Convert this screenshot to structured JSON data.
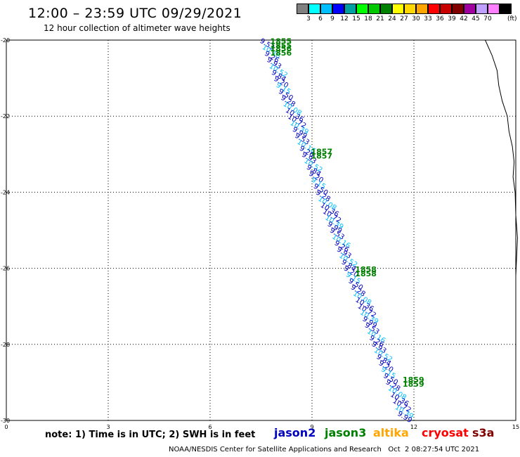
{
  "header": {
    "title": "12:00 – 23:59 UTC 09/29/2021",
    "subtitle": "12 hour collection of altimeter wave heights"
  },
  "legend": {
    "unit": "(ft)",
    "bins": [
      {
        "color": "#808080",
        "label": ""
      },
      {
        "color": "#00ffff",
        "label": "3"
      },
      {
        "color": "#00bfff",
        "label": "6"
      },
      {
        "color": "#0000ff",
        "label": "9"
      },
      {
        "color": "#00a0a0",
        "label": "12"
      },
      {
        "color": "#00ff00",
        "label": "15"
      },
      {
        "color": "#00c800",
        "label": "18"
      },
      {
        "color": "#008000",
        "label": "21"
      },
      {
        "color": "#ffff00",
        "label": "24"
      },
      {
        "color": "#ffd700",
        "label": "27"
      },
      {
        "color": "#ffa500",
        "label": "30"
      },
      {
        "color": "#ff0000",
        "label": "33"
      },
      {
        "color": "#c80000",
        "label": "36"
      },
      {
        "color": "#800000",
        "label": "39"
      },
      {
        "color": "#a000a0",
        "label": "42"
      },
      {
        "color": "#c0a0ff",
        "label": "45"
      },
      {
        "color": "#ff80ff",
        "label": "70"
      },
      {
        "color": "#000000",
        "label": ""
      }
    ]
  },
  "map": {
    "lon_range": [
      0,
      15
    ],
    "lat_range": [
      -30,
      -20
    ],
    "x_ticks": [
      "0",
      "3",
      "6",
      "9",
      "12",
      "15"
    ],
    "y_ticks": [
      "-20",
      "-22",
      "-24",
      "-26",
      "-28",
      "-30"
    ],
    "grid": "dotted",
    "tracks": [
      {
        "mission": "jason3",
        "time_labels": [
          "1855",
          "1856",
          "1857",
          "1858",
          "1859"
        ],
        "label_positions": [
          [
            7.5,
            -20.1
          ],
          [
            7.5,
            -20.3
          ],
          [
            8.7,
            -23.0
          ],
          [
            10.0,
            -26.1
          ],
          [
            11.4,
            -29.0
          ]
        ]
      },
      {
        "mission": "jason2",
        "wave_labels": [
          "9.53",
          "10.16",
          "9.26",
          "9.93",
          "10.52",
          "9.84",
          "9.20",
          "9.15",
          "9.50",
          "9.28",
          "10.08",
          "10.36",
          "10.72",
          "10.39",
          "9.99"
        ]
      }
    ]
  },
  "footer": {
    "note": "note: 1) Time is in UTC; 2) SWH is in feet",
    "missions": [
      {
        "name": "jason2",
        "color": "#0000c0"
      },
      {
        "name": "jason3",
        "color": "#008000"
      },
      {
        "name": "altika",
        "color": "#ffa500"
      },
      {
        "name": "cryosat",
        "color": "#ff0000"
      },
      {
        "name": "s3a",
        "color": "#800000"
      }
    ],
    "credit": "NOAA/NESDIS Center for Satellite Applications and Research   Oct  2 08:27:54 UTC 2021"
  }
}
